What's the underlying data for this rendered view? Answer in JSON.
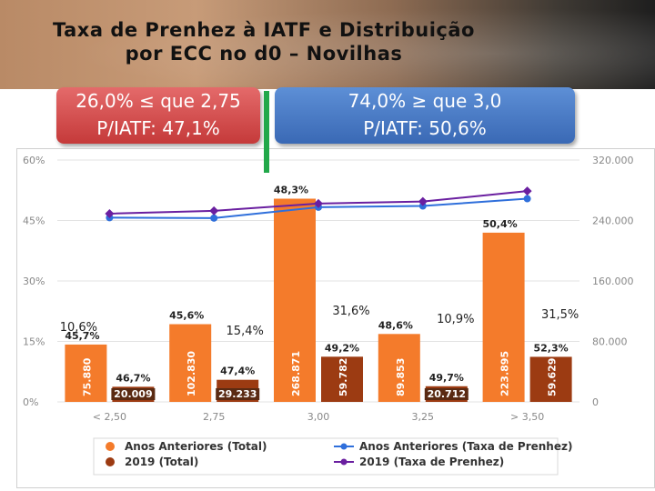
{
  "title": "Taxa de Prenhez à IATF e Distribuição\npor ECC no d0 – Novilhas",
  "callouts": {
    "left": {
      "line1": "26,0% ≤ que 2,75",
      "line2": "P/IATF: 47,1%"
    },
    "right": {
      "line1": "74,0% ≥ que 3,0",
      "line2": "P/IATF: 50,6%"
    }
  },
  "colors": {
    "total_prev": "#f47b2b",
    "total_2019": "#9c3b12",
    "rate_prev": "#2f6fdb",
    "rate_2019": "#6a1fa0",
    "callout_left": "#d24b4b",
    "callout_right": "#4a7cc7",
    "divider": "#22a84a"
  },
  "chart_data": {
    "type": "bar",
    "categories": [
      "< 2,50",
      "2,75",
      "3,00",
      "3,25",
      "> 3,50"
    ],
    "y_left": {
      "ticks": [
        "0%",
        "15%",
        "30%",
        "45%",
        "60%"
      ],
      "range": [
        0,
        60
      ]
    },
    "y_right": {
      "ticks": [
        "0",
        "80.000",
        "160.000",
        "240.000",
        "320.000"
      ],
      "range": [
        0,
        320000
      ]
    },
    "series": [
      {
        "name": "Anos Anteriores (Total)",
        "kind": "bar",
        "axis": "right",
        "values": [
          75880,
          102830,
          268871,
          89853,
          223895
        ],
        "labels": [
          "75.880",
          "102.830",
          "268.871",
          "89.853",
          "223.895"
        ]
      },
      {
        "name": "2019 (Total)",
        "kind": "bar",
        "axis": "right",
        "values": [
          20009,
          29233,
          59782,
          20712,
          59629
        ],
        "labels": [
          "20.009",
          "29.233",
          "59.782",
          "20.712",
          "59.629"
        ]
      },
      {
        "name": "Anos Anteriores (Taxa de Prenhez)",
        "kind": "line",
        "axis": "left",
        "values": [
          45.7,
          45.6,
          48.3,
          48.6,
          50.4
        ],
        "labels": [
          "45,7%",
          "45,6%",
          "48,3%",
          "48,6%",
          "50,4%"
        ]
      },
      {
        "name": "2019 (Taxa de Prenhez)",
        "kind": "line",
        "axis": "left",
        "values": [
          46.7,
          47.4,
          49.2,
          49.7,
          52.3
        ],
        "labels": [
          "46,7%",
          "47,4%",
          "49,2%",
          "49,7%",
          "52,3%"
        ]
      }
    ],
    "distribution_labels": [
      "10,6%",
      "15,4%",
      "31,6%",
      "10,9%",
      "31,5%"
    ],
    "legend": [
      {
        "label": "Anos Anteriores (Total)",
        "series": 0
      },
      {
        "label": "Anos Anteriores (Taxa de Prenhez)",
        "series": 2
      },
      {
        "label": "2019 (Total)",
        "series": 1
      },
      {
        "label": "2019 (Taxa de Prenhez)",
        "series": 3
      }
    ]
  }
}
